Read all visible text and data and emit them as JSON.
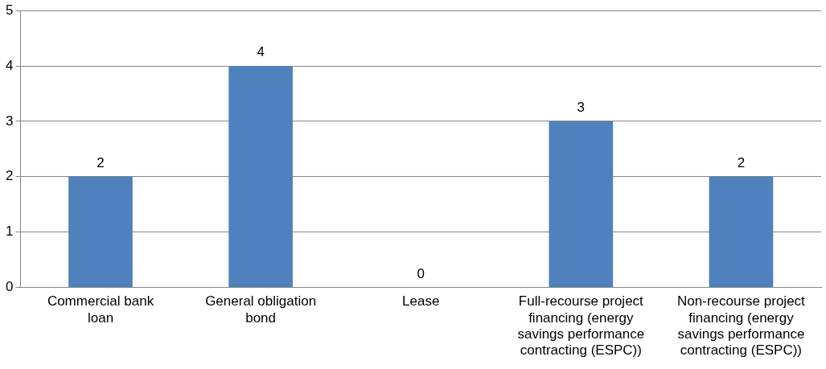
{
  "chart_data": {
    "type": "bar",
    "categories": [
      "Commercial bank loan",
      "General obligation bond",
      "Lease",
      "Full-recourse project financing (energy savings performance contracting (ESPC))",
      "Non-recourse project financing (energy savings performance contracting (ESPC))"
    ],
    "values": [
      2,
      4,
      0,
      3,
      2
    ],
    "color": "#4f81bd",
    "ylim": [
      0,
      5
    ],
    "yticks": [
      0,
      1,
      2,
      3,
      4,
      5
    ],
    "grid": "y",
    "legend": false,
    "data_labels": true
  }
}
